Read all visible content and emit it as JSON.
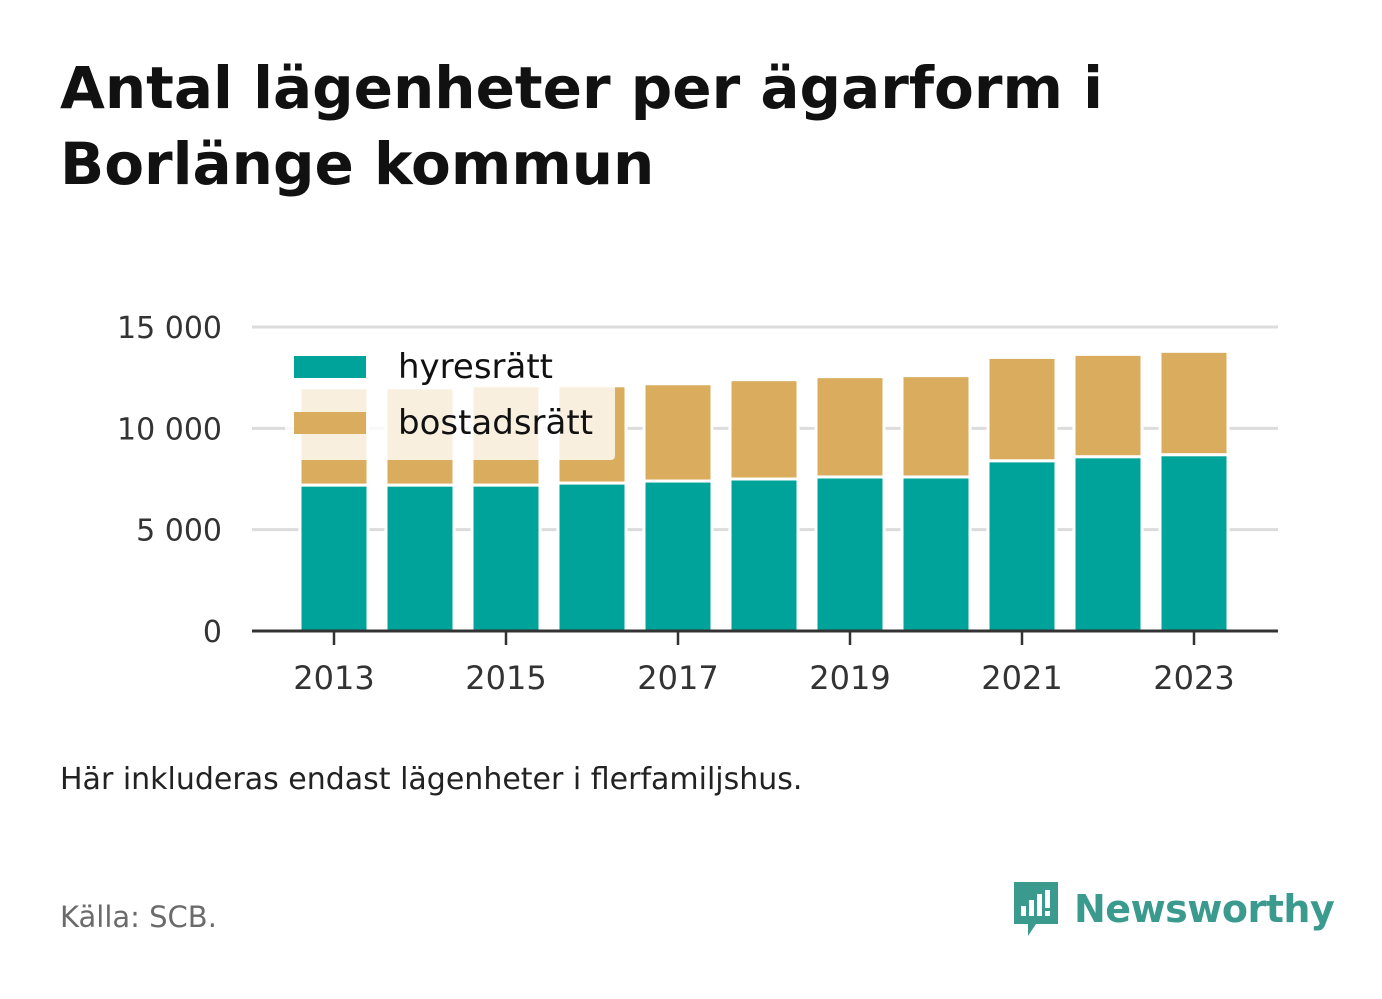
{
  "title": "Antal lägenheter per ägarform i Borlänge kommun",
  "note": "Här inkluderas endast lägenheter i flerfamiljshus.",
  "source": "Källa: SCB.",
  "brand": {
    "name": "Newsworthy",
    "icon": "newsworthy-logo-icon",
    "color": "#3a9a8e"
  },
  "chart_data": {
    "type": "bar",
    "stacked": true,
    "categories": [
      "2013",
      "2014",
      "2015",
      "2016",
      "2017",
      "2018",
      "2019",
      "2020",
      "2021",
      "2022",
      "2023"
    ],
    "x_tick_labels": [
      "2013",
      "2015",
      "2017",
      "2019",
      "2021",
      "2023"
    ],
    "series": [
      {
        "name": "hyresrätt",
        "color": "#00a399",
        "values": [
          7200,
          7200,
          7200,
          7300,
          7400,
          7500,
          7600,
          7600,
          8400,
          8600,
          8700
        ]
      },
      {
        "name": "bostadsrätt",
        "color": "#d9ad5d",
        "values": [
          4800,
          4800,
          4900,
          4800,
          4800,
          4900,
          4950,
          5000,
          5100,
          5050,
          5100
        ]
      }
    ],
    "y_ticks": [
      0,
      5000,
      10000,
      15000
    ],
    "y_tick_labels": [
      "0",
      "5 000",
      "10 000",
      "15 000"
    ],
    "ylim": [
      0,
      15000
    ],
    "grid": true,
    "legend": "top-left"
  }
}
